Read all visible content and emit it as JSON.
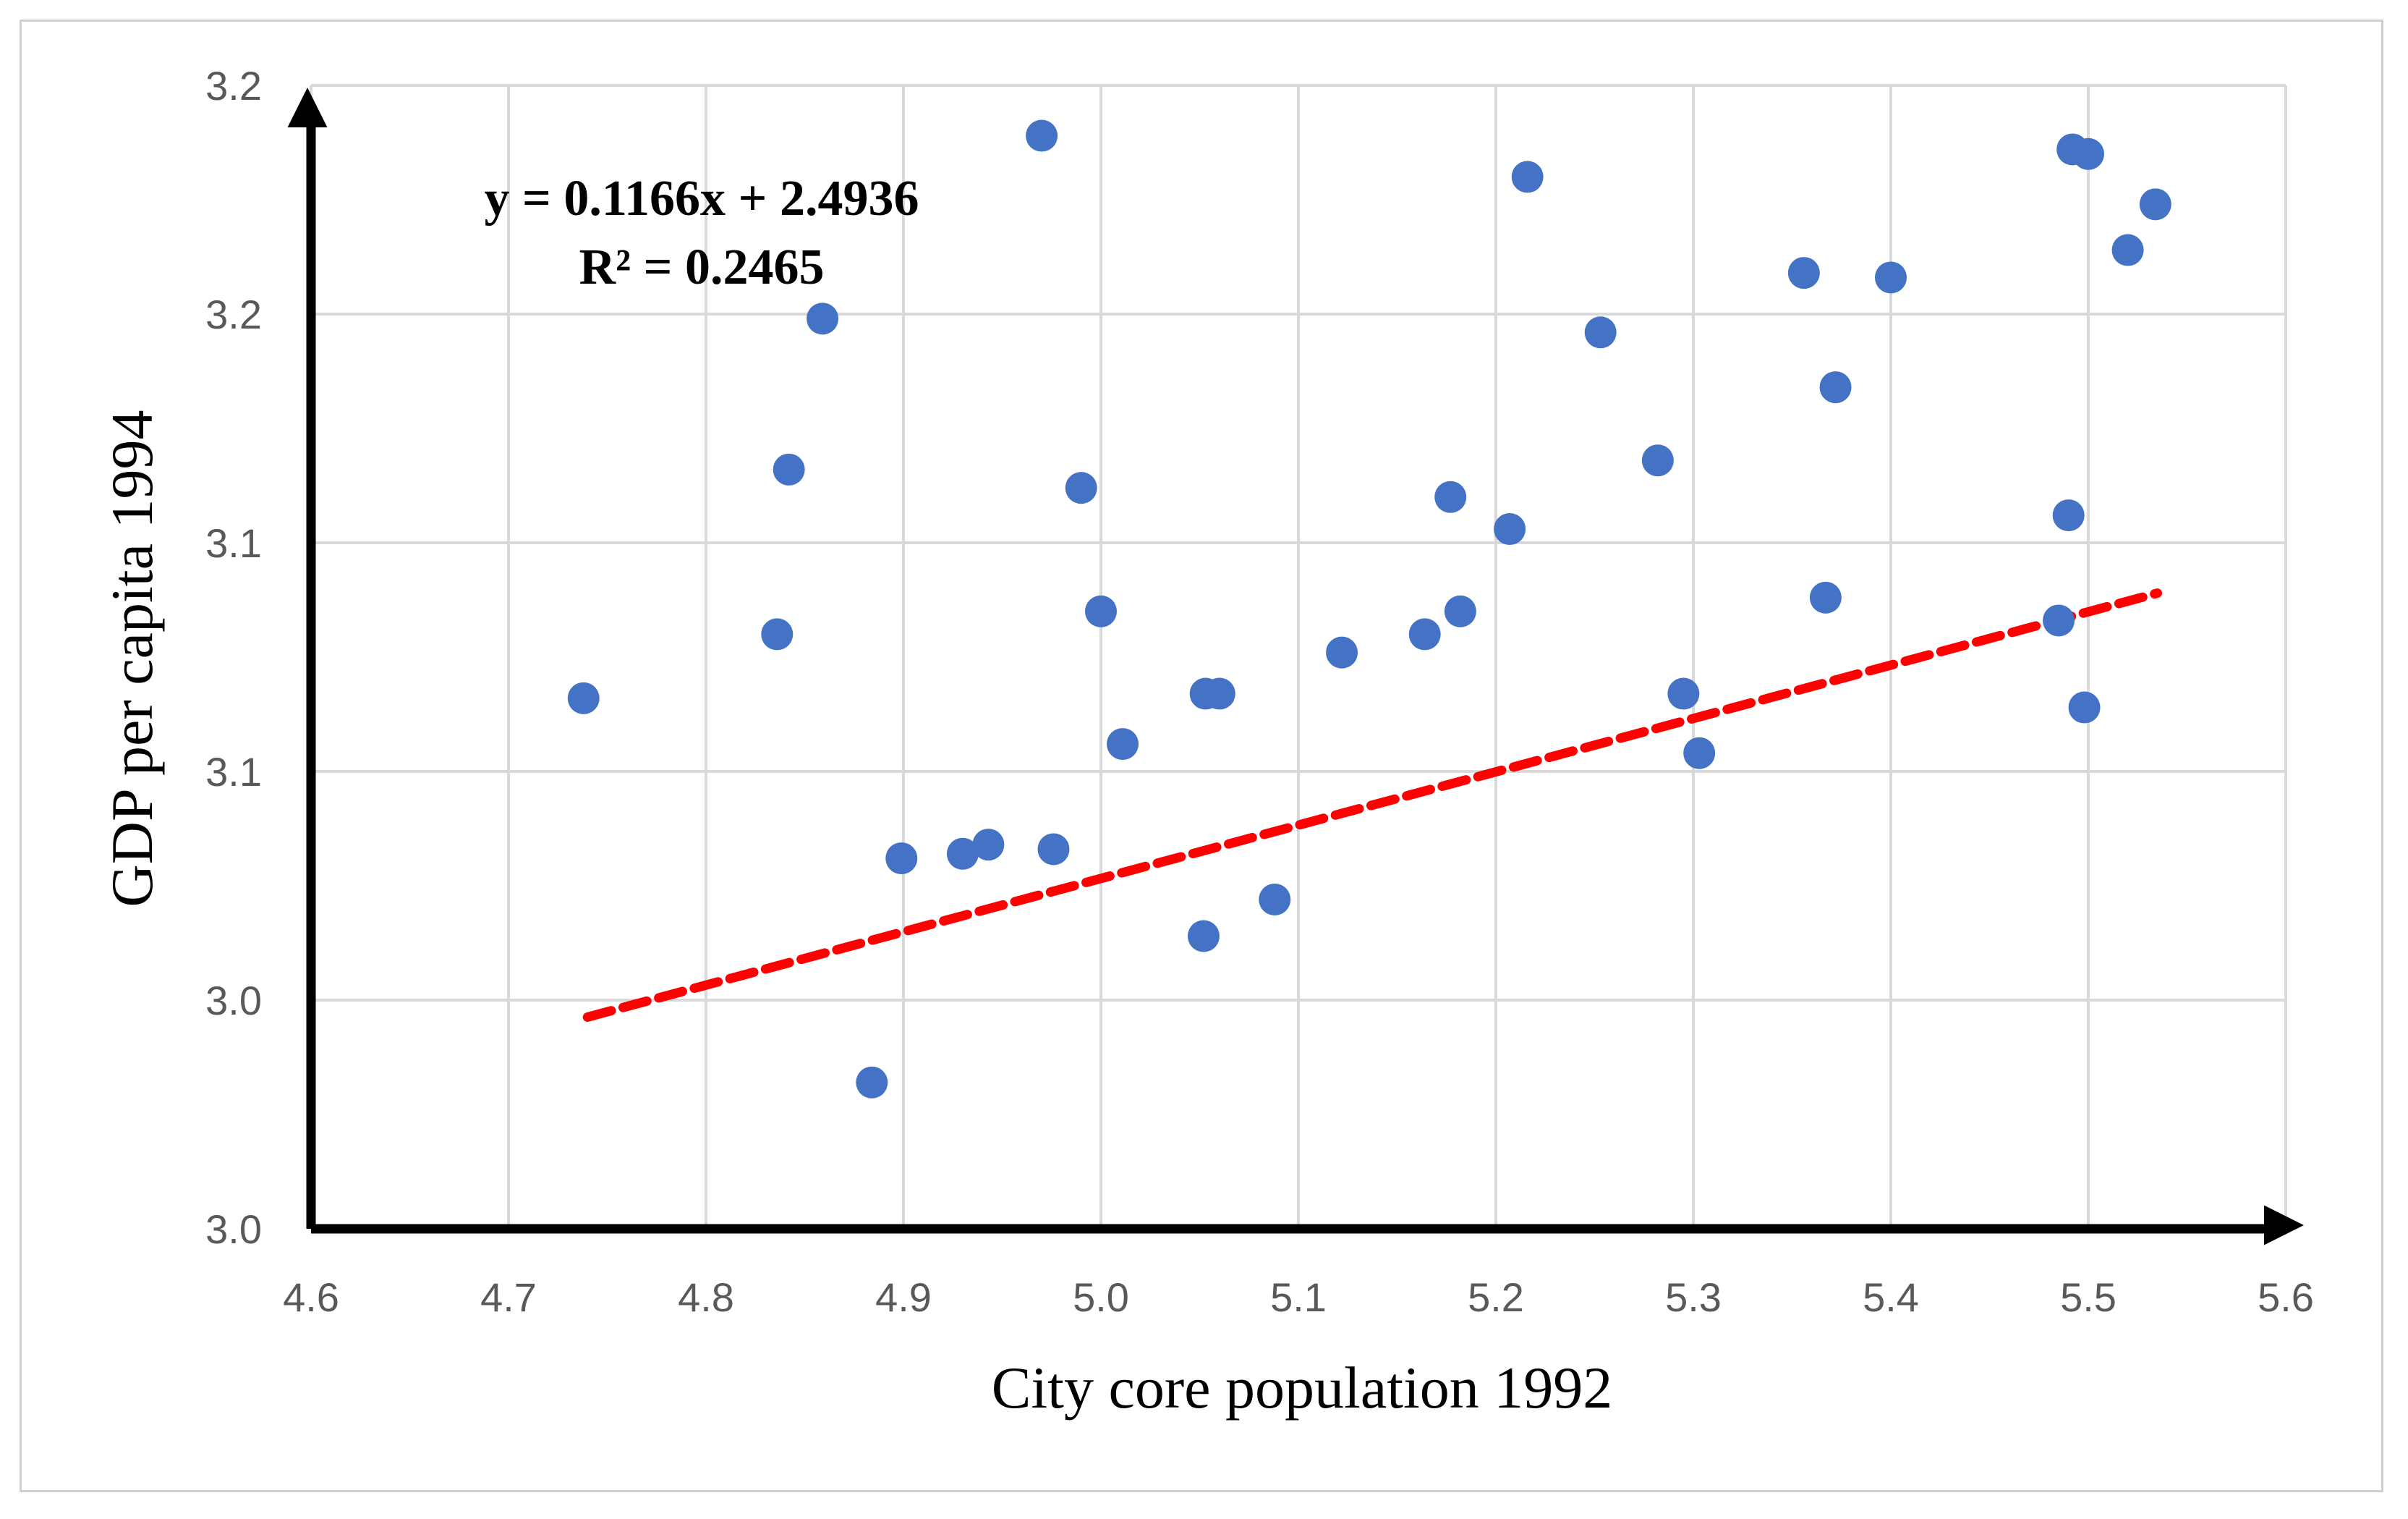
{
  "chart_data": {
    "type": "scatter",
    "xlabel": "City core population 1992",
    "ylabel": "GDP per capita 1994",
    "xlim": [
      4.6,
      5.6
    ],
    "ylim": [
      3.0,
      3.25
    ],
    "x_tick_values": [
      4.6,
      4.7,
      4.8,
      4.9,
      5.0,
      5.1,
      5.2,
      5.3,
      5.4,
      5.5,
      5.6
    ],
    "x_tick_labels": [
      "4.6",
      "4.7",
      "4.8",
      "4.9",
      "5.0",
      "5.1",
      "5.2",
      "5.3",
      "5.4",
      "5.5",
      "5.6"
    ],
    "y_tick_values": [
      3.0,
      3.05,
      3.1,
      3.15,
      3.2,
      3.25
    ],
    "y_tick_labels": [
      "3.0",
      "3.0",
      "3.1",
      "3.1",
      "3.2",
      "3.2"
    ],
    "grid": true,
    "trendline": {
      "equation": "y = 0.1166x + 2.4936",
      "r_squared": "R² = 0.2465",
      "slope": 0.1166,
      "intercept": 2.4936,
      "x_range": [
        4.74,
        5.535
      ],
      "color": "#ff0000",
      "style": "dashed"
    },
    "marker_color": "#4472c4",
    "points": [
      {
        "x": 4.738,
        "y": 3.116
      },
      {
        "x": 4.836,
        "y": 3.13
      },
      {
        "x": 4.842,
        "y": 3.166
      },
      {
        "x": 4.859,
        "y": 3.199
      },
      {
        "x": 4.884,
        "y": 3.032
      },
      {
        "x": 4.899,
        "y": 3.081
      },
      {
        "x": 4.93,
        "y": 3.082
      },
      {
        "x": 4.943,
        "y": 3.084
      },
      {
        "x": 4.97,
        "y": 3.239
      },
      {
        "x": 4.976,
        "y": 3.083
      },
      {
        "x": 4.99,
        "y": 3.162
      },
      {
        "x": 5.0,
        "y": 3.135
      },
      {
        "x": 5.011,
        "y": 3.106
      },
      {
        "x": 5.052,
        "y": 3.064
      },
      {
        "x": 5.053,
        "y": 3.117
      },
      {
        "x": 5.06,
        "y": 3.117
      },
      {
        "x": 5.088,
        "y": 3.072
      },
      {
        "x": 5.122,
        "y": 3.126
      },
      {
        "x": 5.164,
        "y": 3.13
      },
      {
        "x": 5.177,
        "y": 3.16
      },
      {
        "x": 5.182,
        "y": 3.135
      },
      {
        "x": 5.207,
        "y": 3.153
      },
      {
        "x": 5.216,
        "y": 3.23
      },
      {
        "x": 5.253,
        "y": 3.196
      },
      {
        "x": 5.282,
        "y": 3.168
      },
      {
        "x": 5.295,
        "y": 3.117
      },
      {
        "x": 5.303,
        "y": 3.104
      },
      {
        "x": 5.356,
        "y": 3.209
      },
      {
        "x": 5.367,
        "y": 3.138
      },
      {
        "x": 5.372,
        "y": 3.184
      },
      {
        "x": 5.4,
        "y": 3.208
      },
      {
        "x": 5.485,
        "y": 3.133
      },
      {
        "x": 5.49,
        "y": 3.156
      },
      {
        "x": 5.492,
        "y": 3.236
      },
      {
        "x": 5.498,
        "y": 3.114
      },
      {
        "x": 5.5,
        "y": 3.235
      },
      {
        "x": 5.52,
        "y": 3.214
      },
      {
        "x": 5.534,
        "y": 3.224
      }
    ]
  }
}
